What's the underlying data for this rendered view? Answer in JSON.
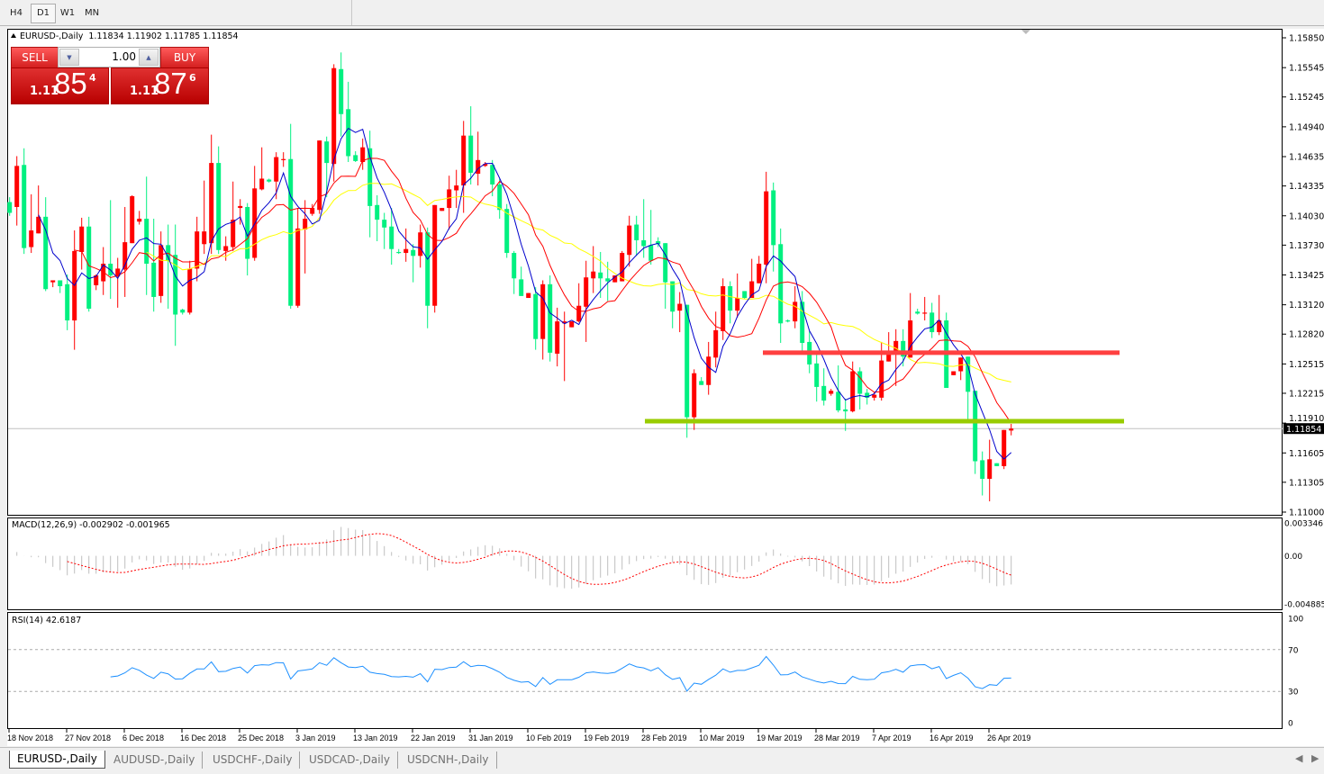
{
  "toolbar": {
    "timeframes": [
      "H4",
      "D1",
      "W1",
      "MN"
    ],
    "active": "D1"
  },
  "chart": {
    "symbol": "EURUSD-,Daily",
    "ohlc": "1.11834 1.11902 1.11785 1.11854"
  },
  "trade_panel": {
    "sell_label": "SELL",
    "buy_label": "BUY",
    "lot": "1.00",
    "sell_price": {
      "prefix": "1.11",
      "big": "85",
      "sup": "4"
    },
    "buy_price": {
      "prefix": "1.11",
      "big": "87",
      "sup": "6"
    }
  },
  "price_axis": {
    "labels": [
      "1.15850",
      "1.15545",
      "1.15245",
      "1.14940",
      "1.14635",
      "1.14335",
      "1.14030",
      "1.13730",
      "1.13425",
      "1.13120",
      "1.12820",
      "1.12515",
      "1.12215",
      "1.11910",
      "1.11605",
      "1.11305",
      "1.11000"
    ],
    "current_price": "1.11854"
  },
  "macd": {
    "label": "MACD(12,26,9) -0.002902 -0.001965",
    "axis_labels": [
      "0.003346",
      "0.00",
      "-0.004885"
    ]
  },
  "rsi": {
    "label": "RSI(14) 42.6187",
    "axis_labels": [
      "100",
      "70",
      "30",
      "0"
    ]
  },
  "date_axis": [
    "18 Nov 2018",
    "27 Nov 2018",
    "6 Dec 2018",
    "16 Dec 2018",
    "25 Dec 2018",
    "3 Jan 2019",
    "13 Jan 2019",
    "22 Jan 2019",
    "31 Jan 2019",
    "10 Feb 2019",
    "19 Feb 2019",
    "28 Feb 2019",
    "10 Mar 2019",
    "19 Mar 2019",
    "28 Mar 2019",
    "7 Apr 2019",
    "16 Apr 2019",
    "26 Apr 2019"
  ],
  "tabs": [
    "EURUSD-,Daily",
    "AUDUSD-,Daily",
    "USDCHF-,Daily",
    "USDCAD-,Daily",
    "USDCNH-,Daily"
  ],
  "active_tab": "EURUSD-,Daily",
  "chart_data": {
    "type": "candlestick",
    "price_range": [
      1.11,
      1.1585
    ],
    "colors": {
      "up": "#ff0000",
      "down": "#00f080",
      "ma_fast": "#0000cc",
      "ma_mid": "#ff0000",
      "ma_slow": "#ffff00",
      "macd_hist": "#c0c0c0",
      "macd_signal": "#ff0000",
      "rsi": "#1e90ff"
    },
    "horizontal_lines": [
      {
        "price": 1.1263,
        "color": "#ff4040"
      },
      {
        "price": 1.1193,
        "color": "#99cc00"
      }
    ],
    "ohlc": [
      [
        1.1417,
        1.1422,
        1.1403,
        1.1406
      ],
      [
        1.1412,
        1.1464,
        1.1393,
        1.1454
      ],
      [
        1.1455,
        1.1472,
        1.1364,
        1.137
      ],
      [
        1.1371,
        1.1425,
        1.1365,
        1.1388
      ],
      [
        1.1385,
        1.1434,
        1.1385,
        1.1402
      ],
      [
        1.1402,
        1.1422,
        1.1326,
        1.1328
      ],
      [
        1.1335,
        1.1337,
        1.133,
        1.1337
      ],
      [
        1.1337,
        1.1337,
        1.1324,
        1.1331
      ],
      [
        1.1333,
        1.1343,
        1.1286,
        1.1296
      ],
      [
        1.1296,
        1.1388,
        1.1266,
        1.1367
      ],
      [
        1.1366,
        1.1401,
        1.1348,
        1.1392
      ],
      [
        1.1392,
        1.1402,
        1.1305,
        1.1308
      ],
      [
        1.1332,
        1.1343,
        1.1327,
        1.1342
      ],
      [
        1.1336,
        1.1371,
        1.1322,
        1.1354
      ],
      [
        1.1354,
        1.1419,
        1.1318,
        1.1342
      ],
      [
        1.1341,
        1.136,
        1.1309,
        1.1349
      ],
      [
        1.1348,
        1.1412,
        1.132,
        1.1376
      ],
      [
        1.1375,
        1.1424,
        1.1375,
        1.1423
      ],
      [
        1.1397,
        1.1408,
        1.1394,
        1.14
      ],
      [
        1.14,
        1.1443,
        1.1322,
        1.1354
      ],
      [
        1.1355,
        1.14,
        1.1305,
        1.132
      ],
      [
        1.1321,
        1.1387,
        1.1314,
        1.1373
      ],
      [
        1.1373,
        1.1394,
        1.1308,
        1.1357
      ],
      [
        1.1363,
        1.1394,
        1.127,
        1.1302
      ],
      [
        1.1307,
        1.1308,
        1.1302,
        1.1304
      ],
      [
        1.1304,
        1.1357,
        1.1302,
        1.1349
      ],
      [
        1.1349,
        1.1402,
        1.1336,
        1.1387
      ],
      [
        1.1374,
        1.1439,
        1.1364,
        1.1387
      ],
      [
        1.1375,
        1.1486,
        1.1364,
        1.1457
      ],
      [
        1.1457,
        1.1474,
        1.1364,
        1.1368
      ],
      [
        1.1367,
        1.1382,
        1.1357,
        1.1372
      ],
      [
        1.1371,
        1.1438,
        1.1367,
        1.1399
      ],
      [
        1.1411,
        1.142,
        1.1394,
        1.1413
      ],
      [
        1.1412,
        1.1416,
        1.1342,
        1.1359
      ],
      [
        1.136,
        1.1454,
        1.1357,
        1.1431
      ],
      [
        1.143,
        1.1473,
        1.1429,
        1.1441
      ],
      [
        1.144,
        1.1441,
        1.1437,
        1.1438
      ],
      [
        1.1438,
        1.1468,
        1.142,
        1.1463
      ],
      [
        1.146,
        1.1468,
        1.1453,
        1.1461
      ],
      [
        1.1461,
        1.1497,
        1.1308,
        1.1311
      ],
      [
        1.1311,
        1.1411,
        1.1309,
        1.139
      ],
      [
        1.1389,
        1.1419,
        1.1344,
        1.14
      ],
      [
        1.1405,
        1.1415,
        1.1403,
        1.1411
      ],
      [
        1.1409,
        1.148,
        1.1405,
        1.148
      ],
      [
        1.1479,
        1.1484,
        1.1422,
        1.1457
      ],
      [
        1.1456,
        1.1558,
        1.1438,
        1.1554
      ],
      [
        1.1553,
        1.157,
        1.1484,
        1.1507
      ],
      [
        1.1512,
        1.154,
        1.1458,
        1.1464
      ],
      [
        1.1465,
        1.1469,
        1.1458,
        1.1459
      ],
      [
        1.1458,
        1.1482,
        1.145,
        1.1473
      ],
      [
        1.1472,
        1.149,
        1.1381,
        1.1413
      ],
      [
        1.1414,
        1.1424,
        1.1377,
        1.1399
      ],
      [
        1.1399,
        1.1406,
        1.1369,
        1.1391
      ],
      [
        1.1392,
        1.1411,
        1.1353,
        1.1369
      ],
      [
        1.1366,
        1.1369,
        1.1364,
        1.1365
      ],
      [
        1.1365,
        1.139,
        1.1356,
        1.1369
      ],
      [
        1.1368,
        1.1374,
        1.1335,
        1.1362
      ],
      [
        1.1362,
        1.1394,
        1.135,
        1.1386
      ],
      [
        1.1386,
        1.1391,
        1.1288,
        1.1311
      ],
      [
        1.1311,
        1.1414,
        1.1304,
        1.1414
      ],
      [
        1.1408,
        1.1411,
        1.1408,
        1.1411
      ],
      [
        1.1411,
        1.1444,
        1.1389,
        1.143
      ],
      [
        1.1429,
        1.145,
        1.1411,
        1.1434
      ],
      [
        1.1434,
        1.15,
        1.1406,
        1.1485
      ],
      [
        1.1485,
        1.1515,
        1.1435,
        1.1447
      ],
      [
        1.1446,
        1.1489,
        1.1434,
        1.146
      ],
      [
        1.1454,
        1.1458,
        1.1453,
        1.1456
      ],
      [
        1.1455,
        1.146,
        1.1423,
        1.1435
      ],
      [
        1.1435,
        1.1441,
        1.14,
        1.1409
      ],
      [
        1.141,
        1.1415,
        1.136,
        1.1365
      ],
      [
        1.1365,
        1.1367,
        1.1323,
        1.1339
      ],
      [
        1.1338,
        1.1351,
        1.1321,
        1.1321
      ],
      [
        1.1319,
        1.1324,
        1.1319,
        1.1324
      ],
      [
        1.1323,
        1.133,
        1.1266,
        1.1277
      ],
      [
        1.1277,
        1.1337,
        1.1256,
        1.1333
      ],
      [
        1.1333,
        1.1342,
        1.1254,
        1.1263
      ],
      [
        1.1262,
        1.1309,
        1.1249,
        1.1295
      ],
      [
        1.1293,
        1.1305,
        1.1234,
        1.1295
      ],
      [
        1.1289,
        1.1295,
        1.1289,
        1.1295
      ],
      [
        1.1295,
        1.1334,
        1.1294,
        1.1311
      ],
      [
        1.131,
        1.1357,
        1.1274,
        1.134
      ],
      [
        1.1339,
        1.1372,
        1.1324,
        1.1346
      ],
      [
        1.1345,
        1.1366,
        1.1319,
        1.1339
      ],
      [
        1.1339,
        1.1356,
        1.1316,
        1.1336
      ],
      [
        1.1335,
        1.1342,
        1.1335,
        1.1342
      ],
      [
        1.1336,
        1.1367,
        1.1336,
        1.1365
      ],
      [
        1.1363,
        1.1403,
        1.1351,
        1.1393
      ],
      [
        1.1394,
        1.1403,
        1.1362,
        1.1378
      ],
      [
        1.1378,
        1.142,
        1.136,
        1.1372
      ],
      [
        1.1373,
        1.1409,
        1.1353,
        1.1357
      ],
      [
        1.1377,
        1.1381,
        1.1371,
        1.1374
      ],
      [
        1.1375,
        1.1375,
        1.1308,
        1.1335
      ],
      [
        1.1336,
        1.1336,
        1.1288,
        1.1305
      ],
      [
        1.1306,
        1.1325,
        1.1284,
        1.1313
      ],
      [
        1.1312,
        1.1312,
        1.1176,
        1.1197
      ],
      [
        1.1197,
        1.1246,
        1.1184,
        1.1242
      ],
      [
        1.1234,
        1.1238,
        1.123,
        1.123
      ],
      [
        1.123,
        1.1274,
        1.122,
        1.1259
      ],
      [
        1.1258,
        1.1305,
        1.1248,
        1.1286
      ],
      [
        1.1285,
        1.1339,
        1.1276,
        1.1331
      ],
      [
        1.1331,
        1.1336,
        1.1293,
        1.1306
      ],
      [
        1.1306,
        1.1344,
        1.1299,
        1.1319
      ],
      [
        1.1326,
        1.1326,
        1.1318,
        1.1319
      ],
      [
        1.1319,
        1.1359,
        1.1319,
        1.1336
      ],
      [
        1.1334,
        1.1362,
        1.1334,
        1.1354
      ],
      [
        1.1353,
        1.1448,
        1.1334,
        1.1428
      ],
      [
        1.1429,
        1.1437,
        1.1346,
        1.1373
      ],
      [
        1.1374,
        1.139,
        1.1273,
        1.1293
      ],
      [
        1.1296,
        1.1297,
        1.1294,
        1.1295
      ],
      [
        1.1295,
        1.1331,
        1.1288,
        1.1315
      ],
      [
        1.1315,
        1.1326,
        1.1265,
        1.1273
      ],
      [
        1.1274,
        1.1285,
        1.1242,
        1.1251
      ],
      [
        1.1252,
        1.1261,
        1.1213,
        1.1228
      ],
      [
        1.1229,
        1.1247,
        1.1209,
        1.1214
      ],
      [
        1.1221,
        1.1226,
        1.1219,
        1.1224
      ],
      [
        1.1223,
        1.125,
        1.1202,
        1.1204
      ],
      [
        1.1205,
        1.1216,
        1.1183,
        1.1203
      ],
      [
        1.1203,
        1.1254,
        1.1202,
        1.1244
      ],
      [
        1.1244,
        1.1248,
        1.1205,
        1.1221
      ],
      [
        1.1222,
        1.1226,
        1.121,
        1.1217
      ],
      [
        1.1217,
        1.1223,
        1.1214,
        1.122
      ],
      [
        1.1217,
        1.1274,
        1.1214,
        1.1255
      ],
      [
        1.1254,
        1.1284,
        1.1254,
        1.1262
      ],
      [
        1.1262,
        1.1287,
        1.1229,
        1.1275
      ],
      [
        1.1275,
        1.1287,
        1.1249,
        1.1259
      ],
      [
        1.1258,
        1.1324,
        1.1258,
        1.1296
      ],
      [
        1.1305,
        1.1308,
        1.1302,
        1.1303
      ],
      [
        1.1303,
        1.132,
        1.1296,
        1.1304
      ],
      [
        1.1304,
        1.1314,
        1.1278,
        1.1284
      ],
      [
        1.1284,
        1.1322,
        1.1281,
        1.1296
      ],
      [
        1.1296,
        1.1304,
        1.1227,
        1.1227
      ],
      [
        1.124,
        1.1244,
        1.124,
        1.1244
      ],
      [
        1.1244,
        1.1258,
        1.1235,
        1.1258
      ],
      [
        1.1259,
        1.1259,
        1.1194,
        1.1223
      ],
      [
        1.1224,
        1.1224,
        1.1139,
        1.1152
      ],
      [
        1.1153,
        1.1162,
        1.1117,
        1.1134
      ],
      [
        1.1134,
        1.1174,
        1.1111,
        1.1154
      ],
      [
        1.115,
        1.115,
        1.1147,
        1.1147
      ],
      [
        1.1147,
        1.1184,
        1.1144,
        1.1184
      ],
      [
        1.11834,
        1.11902,
        1.11785,
        1.11854
      ]
    ]
  }
}
